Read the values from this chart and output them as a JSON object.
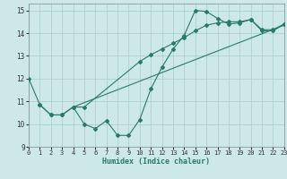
{
  "line1_x": [
    0,
    1,
    2,
    3,
    4,
    5,
    6,
    7,
    8,
    9,
    10,
    11,
    12,
    13,
    14,
    15,
    16,
    17,
    18,
    19,
    20,
    21,
    22,
    23
  ],
  "line1_y": [
    12.0,
    10.85,
    10.4,
    10.4,
    10.75,
    10.0,
    9.8,
    10.15,
    9.5,
    9.5,
    10.2,
    11.55,
    12.5,
    13.3,
    13.9,
    15.0,
    14.95,
    14.65,
    14.4,
    14.45,
    14.6,
    14.1,
    14.1,
    14.4
  ],
  "line2_x": [
    1,
    2,
    3,
    4,
    5,
    10,
    11,
    12,
    13,
    14,
    15,
    16,
    17,
    18,
    19,
    20,
    21,
    22,
    23
  ],
  "line2_y": [
    10.85,
    10.4,
    10.4,
    10.75,
    10.75,
    12.75,
    13.05,
    13.3,
    13.55,
    13.8,
    14.1,
    14.35,
    14.45,
    14.5,
    14.5,
    14.6,
    14.15,
    14.15,
    14.4
  ],
  "line3_x": [
    4,
    23
  ],
  "line3_y": [
    10.75,
    14.35
  ],
  "line_color": "#2a7a68",
  "marker": "D",
  "markersize": 2.0,
  "linewidth": 0.8,
  "xlim": [
    0,
    23
  ],
  "ylim": [
    9,
    15.3
  ],
  "yticks": [
    9,
    10,
    11,
    12,
    13,
    14,
    15
  ],
  "xticks": [
    0,
    1,
    2,
    3,
    4,
    5,
    6,
    7,
    8,
    9,
    10,
    11,
    12,
    13,
    14,
    15,
    16,
    17,
    18,
    19,
    20,
    21,
    22,
    23
  ],
  "xlabel": "Humidex (Indice chaleur)",
  "bg_color": "#cce8e8",
  "grid_color": "#aacccc",
  "axis_color": "#2a7a68"
}
